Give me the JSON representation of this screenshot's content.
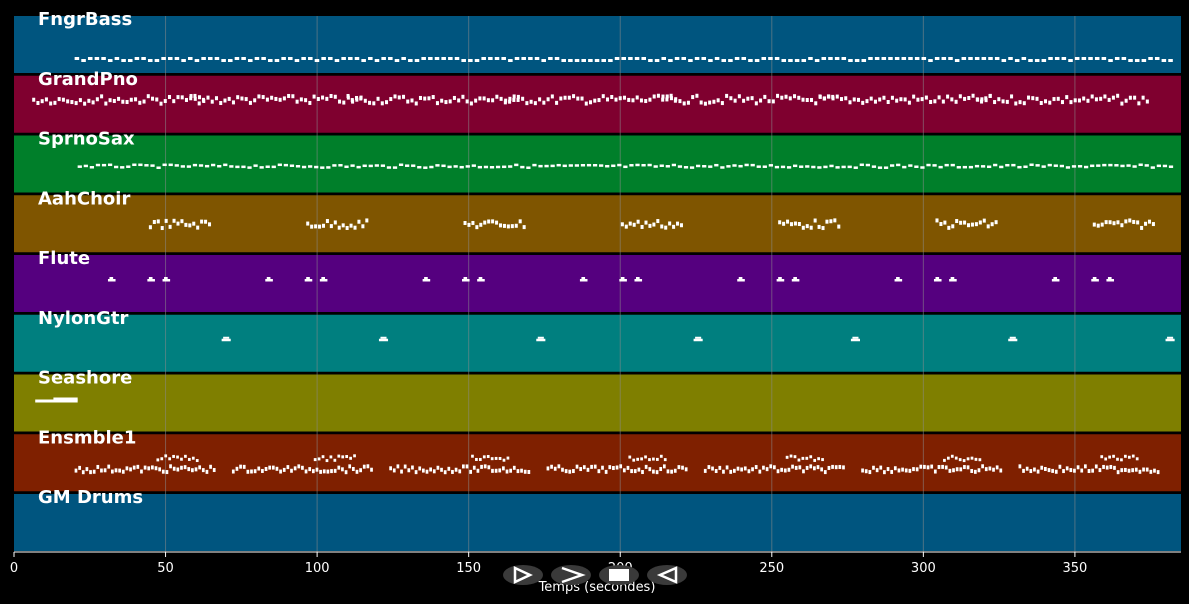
{
  "tracks": [
    {
      "name": "FngrBass",
      "color": "#00557f"
    },
    {
      "name": "GrandPno",
      "color": "#7f002f"
    },
    {
      "name": "SprnoSax",
      "color": "#007f2a"
    },
    {
      "name": "AahChoir",
      "color": "#7f5500"
    },
    {
      "name": "Flute",
      "color": "#55007f"
    },
    {
      "name": "NylonGtr",
      "color": "#007f7f"
    },
    {
      "name": "Seashore",
      "color": "#7f7f00"
    },
    {
      "name": "Ensmble1",
      "color": "#7f2000"
    },
    {
      "name": "GM Drums",
      "color": "#00557f"
    }
  ],
  "axis": {
    "label": "Temps (secondes)",
    "ticks": [
      "0",
      "50",
      "100",
      "150",
      "200",
      "250",
      "300",
      "350"
    ],
    "tick_values": [
      0,
      50,
      100,
      150,
      200,
      250,
      300,
      350
    ],
    "xlim": [
      0,
      385
    ]
  },
  "controls": [
    {
      "name": "play-button",
      "icon": "play-icon"
    },
    {
      "name": "forward-button",
      "icon": "forward-icon"
    },
    {
      "name": "stop-button",
      "icon": "stop-icon"
    },
    {
      "name": "back-button",
      "icon": "back-icon"
    }
  ],
  "colors": {
    "background": "#000000",
    "grid": "#8a8a8a",
    "note": "#ffffff"
  }
}
